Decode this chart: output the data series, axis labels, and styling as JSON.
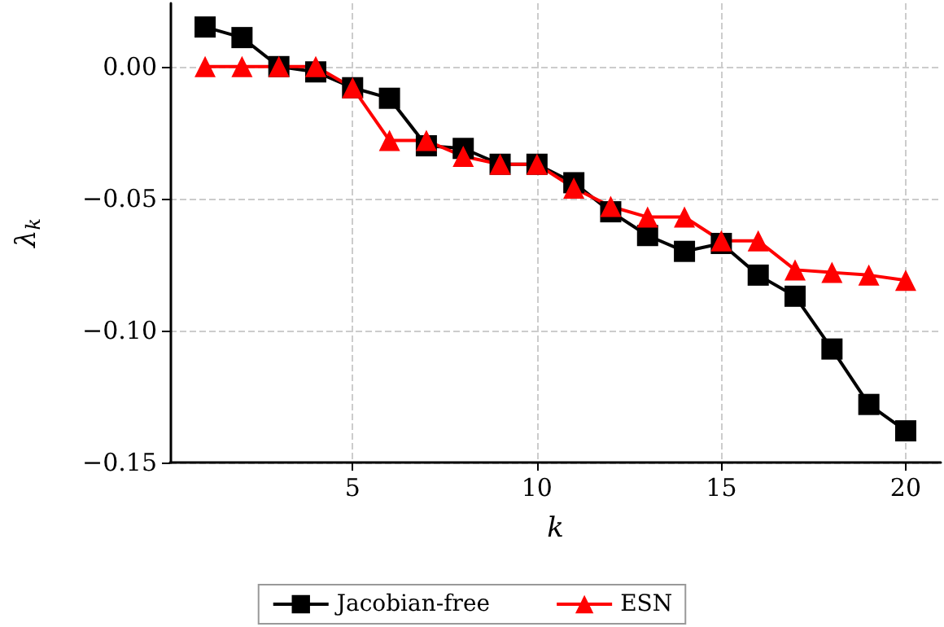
{
  "chart_data": {
    "type": "line",
    "xlabel": "k",
    "ylabel": "λ$_{k}$",
    "x": [
      1,
      2,
      3,
      4,
      5,
      6,
      7,
      8,
      9,
      10,
      11,
      12,
      13,
      14,
      15,
      16,
      17,
      18,
      19,
      20
    ],
    "series": [
      {
        "name": "Jacobian-free",
        "color": "#000000",
        "marker": "square",
        "values": [
          0.015,
          0.011,
          0,
          -0.002,
          -0.008,
          -0.012,
          -0.03,
          -0.031,
          -0.037,
          -0.037,
          -0.044,
          -0.055,
          -0.064,
          -0.07,
          -0.067,
          -0.079,
          -0.087,
          -0.107,
          -0.128,
          -0.138
        ]
      },
      {
        "name": "ESN",
        "color": "#ff0000",
        "marker": "triangle",
        "values": [
          0,
          0,
          0,
          0,
          -0.008,
          -0.028,
          -0.028,
          -0.034,
          -0.037,
          -0.037,
          -0.046,
          -0.053,
          -0.057,
          -0.057,
          -0.066,
          -0.066,
          -0.077,
          -0.078,
          -0.079,
          -0.081
        ]
      }
    ],
    "xlim": [
      0.05,
      20.95
    ],
    "xticks": [
      5,
      10,
      15,
      20
    ],
    "ylim": [
      -0.15,
      0.024
    ],
    "yticks": [
      {
        "value": 0,
        "label": "0.00"
      },
      {
        "value": -0.05,
        "label": "−0.05"
      },
      {
        "value": -0.1,
        "label": "−0.10"
      },
      {
        "value": -0.15,
        "label": "−0.15"
      }
    ],
    "grid": true,
    "legend": "bottom",
    "line_style": "solid"
  }
}
